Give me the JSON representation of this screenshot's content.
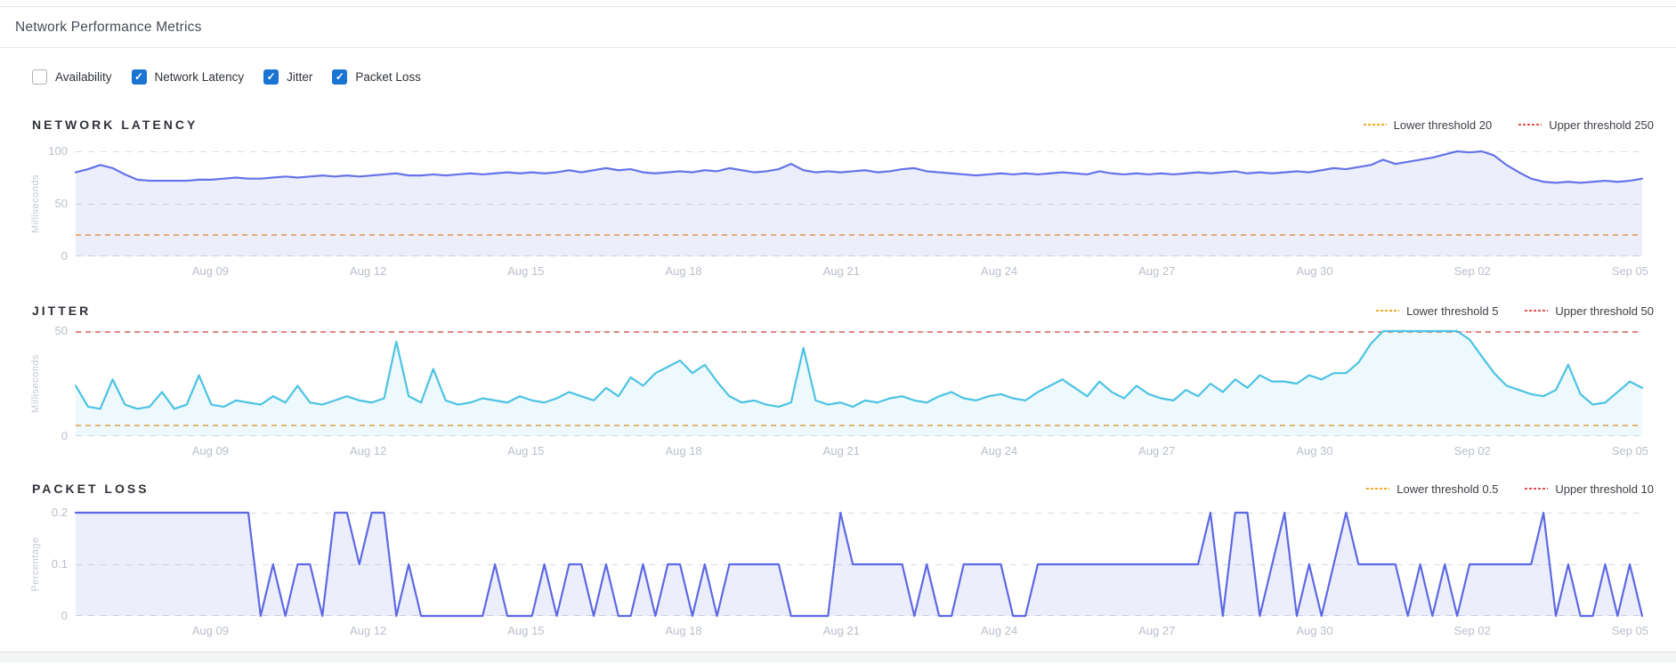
{
  "page": {
    "title": "Network Performance Metrics"
  },
  "controls": [
    {
      "label": "Availability",
      "checked": false
    },
    {
      "label": "Network Latency",
      "checked": true
    },
    {
      "label": "Jitter",
      "checked": true
    },
    {
      "label": "Packet Loss",
      "checked": true
    }
  ],
  "colors": {
    "checkbox_blue": "#1974d2",
    "latency_line": "#6673e8",
    "jitter_line": "#4cc3e3",
    "packet_line": "#5d68e4",
    "lower_threshold": "#f5a623",
    "upper_threshold": "#e2504c",
    "gridline": "#d8dbdf",
    "tick_text": "#b9c0ca"
  },
  "chart_data": [
    {
      "type": "area",
      "title": "NETWORK LATENCY",
      "ylabel": "Milliseconds",
      "ylim": [
        0,
        100
      ],
      "yticks": [
        0,
        50,
        100
      ],
      "lower_threshold": 20,
      "upper_threshold": 250,
      "legend": [
        {
          "label": "Lower threshold 20",
          "color": "#f5a623"
        },
        {
          "label": "Upper threshold 250",
          "color": "#e2504c"
        }
      ],
      "line_color": "#6673e8",
      "fill_color": "rgba(102,115,232,0.12)",
      "x_labels": [
        "Aug 09",
        "Aug 12",
        "Aug 15",
        "Aug 18",
        "Aug 21",
        "Aug 24",
        "Aug 27",
        "Aug 30",
        "Sep 02",
        "Sep 05"
      ],
      "values": [
        80,
        83,
        87,
        84,
        78,
        73,
        72,
        72,
        72,
        72,
        73,
        73,
        74,
        75,
        74,
        74,
        75,
        76,
        75,
        76,
        77,
        76,
        77,
        76,
        77,
        78,
        79,
        77,
        77,
        78,
        77,
        78,
        79,
        78,
        79,
        80,
        79,
        80,
        79,
        80,
        82,
        80,
        82,
        84,
        82,
        83,
        80,
        79,
        80,
        81,
        80,
        82,
        81,
        84,
        82,
        80,
        81,
        83,
        88,
        82,
        80,
        81,
        80,
        81,
        82,
        80,
        81,
        83,
        84,
        81,
        80,
        79,
        78,
        77,
        78,
        79,
        78,
        79,
        78,
        79,
        80,
        79,
        78,
        81,
        79,
        78,
        79,
        78,
        79,
        78,
        79,
        80,
        79,
        80,
        81,
        79,
        80,
        79,
        80,
        81,
        80,
        82,
        84,
        83,
        85,
        87,
        92,
        88,
        90,
        92,
        94,
        97,
        100,
        99,
        100,
        96,
        87,
        80,
        74,
        71,
        70,
        71,
        70,
        71,
        72,
        71,
        72,
        74
      ]
    },
    {
      "type": "area",
      "title": "JITTER",
      "ylabel": "Milliseconds",
      "ylim": [
        0,
        50
      ],
      "yticks": [
        0,
        50
      ],
      "lower_threshold": 5,
      "upper_threshold": 50,
      "legend": [
        {
          "label": "Lower threshold 5",
          "color": "#f5a623"
        },
        {
          "label": "Upper threshold 50",
          "color": "#e2504c"
        }
      ],
      "line_color": "#4cc3e3",
      "fill_color": "rgba(76,196,228,0.10)",
      "x_labels": [
        "Aug 09",
        "Aug 12",
        "Aug 15",
        "Aug 18",
        "Aug 21",
        "Aug 24",
        "Aug 27",
        "Aug 30",
        "Sep 02",
        "Sep 05"
      ],
      "values": [
        24,
        14,
        13,
        27,
        15,
        13,
        14,
        21,
        13,
        15,
        29,
        15,
        14,
        17,
        16,
        15,
        19,
        16,
        24,
        16,
        15,
        17,
        19,
        17,
        16,
        18,
        45,
        19,
        16,
        32,
        17,
        15,
        16,
        18,
        17,
        16,
        19,
        17,
        16,
        18,
        21,
        19,
        17,
        23,
        19,
        28,
        24,
        30,
        33,
        36,
        30,
        34,
        26,
        19,
        16,
        17,
        15,
        14,
        16,
        42,
        17,
        15,
        16,
        14,
        17,
        16,
        18,
        19,
        17,
        16,
        19,
        21,
        18,
        17,
        19,
        20,
        18,
        17,
        21,
        24,
        27,
        23,
        19,
        26,
        21,
        18,
        24,
        20,
        18,
        17,
        22,
        19,
        25,
        21,
        27,
        23,
        29,
        26,
        26,
        25,
        29,
        27,
        30,
        30,
        35,
        44,
        50,
        50,
        50,
        50,
        50,
        50,
        50,
        46,
        38,
        30,
        24,
        22,
        20,
        19,
        22,
        34,
        20,
        15,
        16,
        21,
        26,
        23
      ]
    },
    {
      "type": "area",
      "title": "PACKET LOSS",
      "ylabel": "Percentage",
      "ylim": [
        0,
        0.2
      ],
      "yticks": [
        0,
        0.1,
        0.2
      ],
      "lower_threshold": 0.5,
      "upper_threshold": 10,
      "legend": [
        {
          "label": "Lower threshold 0.5",
          "color": "#f5a623"
        },
        {
          "label": "Upper threshold 10",
          "color": "#e2504c"
        }
      ],
      "line_color": "#5d68e4",
      "fill_color": "rgba(102,115,232,0.12)",
      "x_labels": [
        "Aug 09",
        "Aug 12",
        "Aug 15",
        "Aug 18",
        "Aug 21",
        "Aug 24",
        "Aug 27",
        "Aug 30",
        "Sep 02",
        "Sep 05"
      ],
      "values": [
        0.2,
        0.2,
        0.2,
        0.2,
        0.2,
        0.2,
        0.2,
        0.2,
        0.2,
        0.2,
        0.2,
        0.2,
        0.2,
        0.2,
        0.2,
        0,
        0.1,
        0,
        0.1,
        0.1,
        0,
        0.2,
        0.2,
        0.1,
        0.2,
        0.2,
        0,
        0.1,
        0,
        0,
        0,
        0,
        0,
        0,
        0.1,
        0,
        0,
        0,
        0.1,
        0,
        0.1,
        0.1,
        0,
        0.1,
        0,
        0,
        0.1,
        0,
        0.1,
        0.1,
        0,
        0.1,
        0,
        0.1,
        0.1,
        0.1,
        0.1,
        0.1,
        0,
        0,
        0,
        0,
        0.2,
        0.1,
        0.1,
        0.1,
        0.1,
        0.1,
        0,
        0.1,
        0,
        0,
        0.1,
        0.1,
        0.1,
        0.1,
        0,
        0,
        0.1,
        0.1,
        0.1,
        0.1,
        0.1,
        0.1,
        0.1,
        0.1,
        0.1,
        0.1,
        0.1,
        0.1,
        0.1,
        0.1,
        0.2,
        0,
        0.2,
        0.2,
        0,
        0.1,
        0.2,
        0,
        0.1,
        0,
        0.1,
        0.2,
        0.1,
        0.1,
        0.1,
        0.1,
        0,
        0.1,
        0,
        0.1,
        0,
        0.1,
        0.1,
        0.1,
        0.1,
        0.1,
        0.1,
        0.2,
        0,
        0.1,
        0,
        0,
        0.1,
        0,
        0.1,
        0
      ]
    }
  ]
}
